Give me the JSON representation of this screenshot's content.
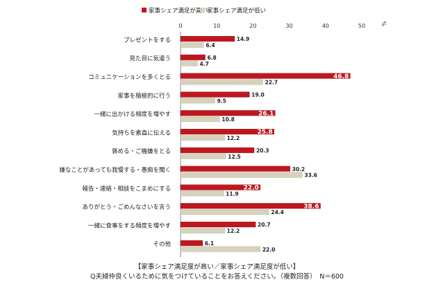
{
  "chart_data": {
    "type": "bar",
    "orientation": "horizontal",
    "categories": [
      "プレゼントをする",
      "見た目に気遣う",
      "コミュニケーションを多くとる",
      "家事を積極的に行う",
      "一緒に出かける頻度を増やす",
      "気持ちを素直に伝える",
      "褒める・ご機嫌をとる",
      "嫌なことがあっても我慢する・愚痴を聞く",
      "報告・連絡・相談をこまめにする",
      "ありがとう・ごめんなさいを言う",
      "一緒に食事をする頻度を増やす",
      "その他"
    ],
    "series": [
      {
        "name": "家事シェア満足が高い",
        "color": "#c0171f",
        "values": [
          14.9,
          6.8,
          46.8,
          19.0,
          26.1,
          25.8,
          20.3,
          30.2,
          22.0,
          38.6,
          20.7,
          6.1
        ],
        "labels": [
          "14.9",
          "6.8",
          "46.8",
          "19.0",
          "26.1",
          "25.8",
          "20.3",
          "30.2",
          "22.0",
          "38.6",
          "20.7",
          "6.1"
        ]
      },
      {
        "name": "家事シェア満足が低い",
        "color": "#d6d2bd",
        "values": [
          6.4,
          4.7,
          22.7,
          9.5,
          10.8,
          12.2,
          12.5,
          33.6,
          11.9,
          24.4,
          12.2,
          22.0
        ],
        "labels": [
          "6.4",
          "4.7",
          "22.7",
          "9.5",
          "10.8",
          "12.2",
          "12.5",
          "33.6",
          "11.9",
          "24.4",
          "12.2",
          "22.0"
        ]
      }
    ],
    "highlight_inside": [
      2,
      4,
      5,
      8,
      9
    ],
    "xlim": [
      0,
      50
    ],
    "xticks": [
      "0",
      "10",
      "20",
      "30",
      "40",
      "50"
    ],
    "unit_label": "%",
    "legend_position": "top",
    "grid": false
  },
  "caption": {
    "line1": "【家事シェア満足度が高い／家事シェア満足度が低い】",
    "line2": "Q夫婦仲良くいるために気をつけていることをお答えください。（複数回答）　N＝600"
  }
}
